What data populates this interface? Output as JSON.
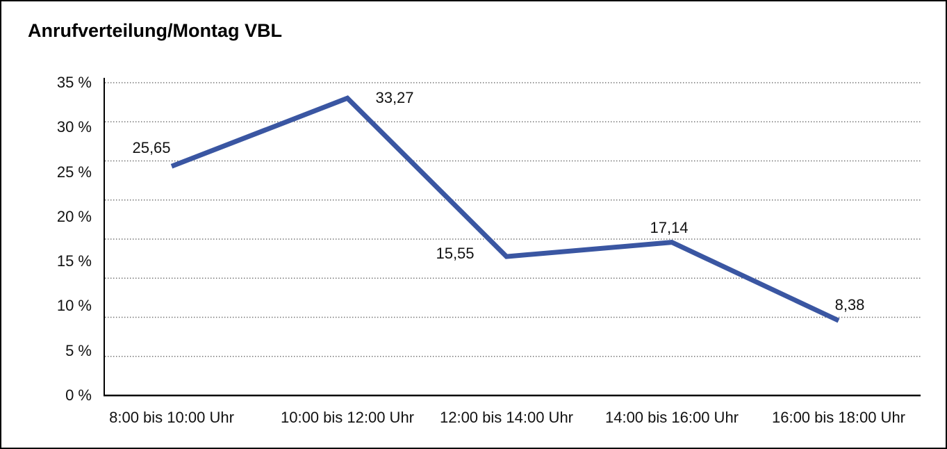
{
  "chart_data": {
    "type": "line",
    "title": "Anrufverteilung/Montag VBL",
    "categories": [
      "8:00 bis 10:00 Uhr",
      "10:00 bis 12:00 Uhr",
      "12:00 bis 14:00 Uhr",
      "14:00 bis 16:00 Uhr",
      "16:00 bis 18:00 Uhr"
    ],
    "values": [
      25.65,
      33.27,
      15.55,
      17.14,
      8.38
    ],
    "data_labels": [
      "25,65",
      "33,27",
      "15,55",
      "17,14",
      "8,38"
    ],
    "xlabel": "",
    "ylabel": "",
    "ylim": [
      0,
      35
    ],
    "ytick_step": 5,
    "ytick_labels": [
      "35 %",
      "30 %",
      "25 %",
      "20 %",
      "15 %",
      "10 %",
      "5 %",
      "0 %"
    ],
    "gridlines": {
      "horizontal_count": 9,
      "style": "dotted",
      "vertical": false
    },
    "legend": "none",
    "markers": "none",
    "colors": {
      "line": "#3A56A2",
      "grid": "#6F6F6F",
      "axis": "#000000",
      "text": "#111111",
      "background": "#FFFFFF",
      "border": "#000000"
    }
  }
}
